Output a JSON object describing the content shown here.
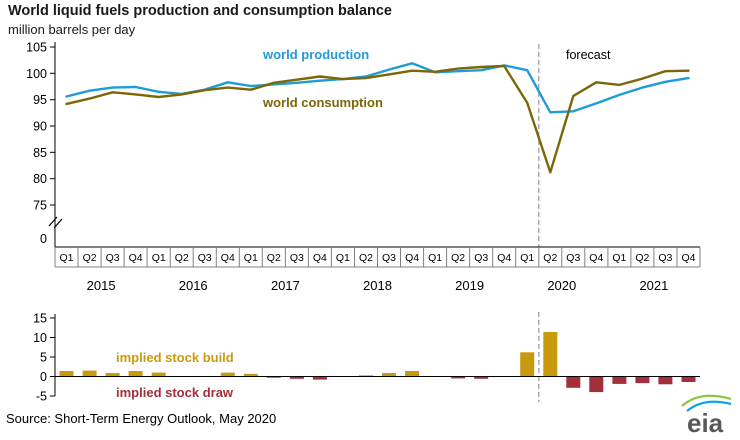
{
  "header": {
    "title": "World liquid fuels production and consumption balance",
    "subtitle": "million barrels per day"
  },
  "chart_data": {
    "type": "line",
    "title": "World liquid fuels production and consumption balance",
    "units": "million barrels per day",
    "x_quarter_labels": [
      "Q1",
      "Q2",
      "Q3",
      "Q4",
      "Q1",
      "Q2",
      "Q3",
      "Q4",
      "Q1",
      "Q2",
      "Q3",
      "Q4",
      "Q1",
      "Q2",
      "Q3",
      "Q4",
      "Q1",
      "Q2",
      "Q3",
      "Q4",
      "Q1",
      "Q2",
      "Q3",
      "Q4",
      "Q1",
      "Q2",
      "Q3",
      "Q4"
    ],
    "years": [
      "2015",
      "2016",
      "2017",
      "2018",
      "2019",
      "2020",
      "2021"
    ],
    "forecast_label": "forecast",
    "forecast_start_index": 21,
    "forecast_line_color": "#999999",
    "top": {
      "type": "line",
      "ylim": [
        75,
        105
      ],
      "yticks": [
        105,
        100,
        95,
        90,
        85,
        80,
        75
      ],
      "axis_break_zero_label": "0",
      "series": [
        {
          "name": "world production",
          "color": "#1f9bd7",
          "values": [
            95.6,
            96.7,
            97.3,
            97.4,
            96.5,
            96.1,
            96.9,
            98.3,
            97.6,
            97.9,
            98.2,
            98.6,
            98.9,
            99.4,
            100.7,
            101.9,
            100.2,
            100.4,
            100.6,
            101.5,
            100.6,
            92.6,
            92.8,
            94.3,
            95.9,
            97.3,
            98.4,
            99.1
          ]
        },
        {
          "name": "world consumption",
          "color": "#7d6608",
          "values": [
            94.2,
            95.2,
            96.4,
            96.0,
            95.5,
            96.0,
            96.8,
            97.3,
            96.9,
            98.2,
            98.8,
            99.4,
            98.9,
            99.1,
            99.8,
            100.5,
            100.3,
            100.9,
            101.2,
            101.4,
            94.4,
            81.2,
            95.7,
            98.3,
            97.8,
            99.0,
            100.4,
            100.5
          ]
        }
      ]
    },
    "bottom": {
      "type": "bar",
      "ylim": [
        -5,
        15
      ],
      "yticks": [
        15,
        10,
        5,
        0,
        -5
      ],
      "build_label": "implied stock build",
      "draw_label": "implied stock draw",
      "build_color": "#c89b0e",
      "draw_color": "#a22f39",
      "values": [
        1.4,
        1.5,
        0.9,
        1.4,
        1.0,
        0.1,
        0.1,
        1.0,
        0.7,
        -0.3,
        -0.6,
        -0.8,
        0.0,
        0.3,
        0.9,
        1.4,
        -0.1,
        -0.5,
        -0.6,
        0.1,
        6.2,
        11.4,
        -2.9,
        -4.0,
        -1.9,
        -1.7,
        -2.0,
        -1.4
      ]
    }
  },
  "footer": {
    "source": "Source: Short-Term Energy Outlook, May 2020",
    "logo_text": "eia",
    "logo_green": "#8dc63f",
    "logo_blue": "#00a4e4",
    "logo_text_color": "#58595b"
  }
}
